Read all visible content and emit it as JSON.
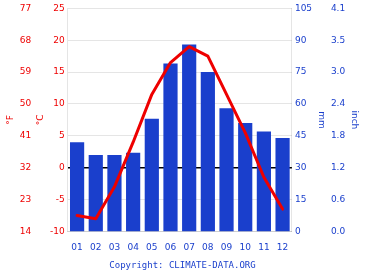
{
  "chart_data": {
    "type": "bar",
    "categories": [
      "01",
      "02",
      "03",
      "04",
      "05",
      "06",
      "07",
      "08",
      "09",
      "10",
      "11",
      "12"
    ],
    "series": [
      {
        "type": "bar",
        "color": "#1a3fcc",
        "axis": "y2",
        "values": [
          42,
          36,
          36,
          37,
          53,
          79,
          88,
          75,
          58,
          51,
          47,
          44
        ]
      },
      {
        "type": "line",
        "color": "#ee0000",
        "values": [
          -7.5,
          -8.0,
          -3.0,
          4.0,
          11.5,
          16.5,
          19.0,
          17.5,
          11.5,
          5.5,
          -1.5,
          -6.5
        ]
      }
    ],
    "ylabel": "°C",
    "ylim": [
      -10,
      25
    ],
    "yticks": [
      -10,
      -5,
      0,
      5,
      10,
      15,
      20,
      25
    ],
    "y2label": "mm",
    "y2lim": [
      0,
      105
    ],
    "y2ticks": [
      0,
      15,
      30,
      45,
      60,
      75,
      90,
      105
    ],
    "y3label": "°F",
    "y3lim": [
      -10,
      25
    ],
    "y3ticks": [
      {
        "value": -10,
        "label": "14"
      },
      {
        "value": -5,
        "label": "23"
      },
      {
        "value": 0,
        "label": "32"
      },
      {
        "value": 5,
        "label": "41"
      },
      {
        "value": 10,
        "label": "50"
      },
      {
        "value": 15,
        "label": "59"
      },
      {
        "value": 20,
        "label": "68"
      },
      {
        "value": 25,
        "label": "77"
      }
    ],
    "y4label": "inch",
    "y4lim": [
      0,
      105
    ],
    "y4ticks": [
      {
        "value": 0,
        "label": "0.0"
      },
      {
        "value": 15,
        "label": "0.6"
      },
      {
        "value": 30,
        "label": "1.2"
      },
      {
        "value": 45,
        "label": "1.8"
      },
      {
        "value": 60,
        "label": "2.4"
      },
      {
        "value": 75,
        "label": "3.0"
      },
      {
        "value": 90,
        "label": "3.5"
      },
      {
        "value": 105,
        "label": "4.1"
      }
    ],
    "annotations": [
      "Copyright: CLIMATE-DATA.ORG"
    ],
    "grid": true
  }
}
